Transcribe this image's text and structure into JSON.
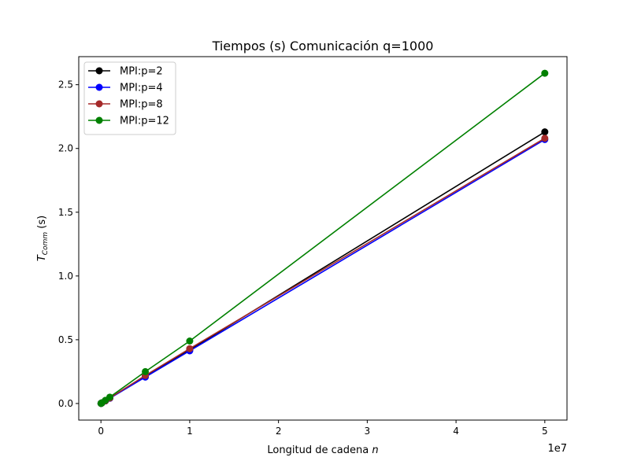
{
  "chart_data": {
    "type": "line",
    "title": "Tiempos (s) Comunicación q=1000",
    "xlabel": "Longitud de cadena n",
    "ylabel": "T_Comm (s)",
    "x_offset_label": "1e7",
    "xlim": [
      -2500000.0,
      52500000.0
    ],
    "ylim": [
      -0.13,
      2.72
    ],
    "x_ticks": [
      0,
      10000000.0,
      20000000.0,
      30000000.0,
      40000000.0,
      50000000.0
    ],
    "x_tick_labels": [
      "0",
      "1",
      "2",
      "3",
      "4",
      "5"
    ],
    "y_ticks": [
      0.0,
      0.5,
      1.0,
      1.5,
      2.0,
      2.5
    ],
    "y_tick_labels": [
      "0.0",
      "0.5",
      "1.0",
      "1.5",
      "2.0",
      "2.5"
    ],
    "grid": false,
    "legend_position": "top-left",
    "x": [
      10000,
      50000,
      100000,
      500000,
      1000000,
      5000000,
      10000000,
      50000000
    ],
    "series": [
      {
        "name": "MPI:p=2",
        "color": "#000000",
        "values": [
          0.0005,
          0.002,
          0.0045,
          0.021,
          0.043,
          0.215,
          0.42,
          2.13
        ]
      },
      {
        "name": "MPI:p=4",
        "color": "#0000ff",
        "values": [
          0.0004,
          0.002,
          0.0042,
          0.02,
          0.041,
          0.207,
          0.413,
          2.07
        ]
      },
      {
        "name": "MPI:p=8",
        "color": "#a52a2a",
        "values": [
          0.0004,
          0.002,
          0.0043,
          0.021,
          0.043,
          0.22,
          0.43,
          2.08
        ]
      },
      {
        "name": "MPI:p=12",
        "color": "#008000",
        "values": [
          0.0005,
          0.0025,
          0.005,
          0.025,
          0.05,
          0.25,
          0.49,
          2.59
        ]
      }
    ]
  }
}
